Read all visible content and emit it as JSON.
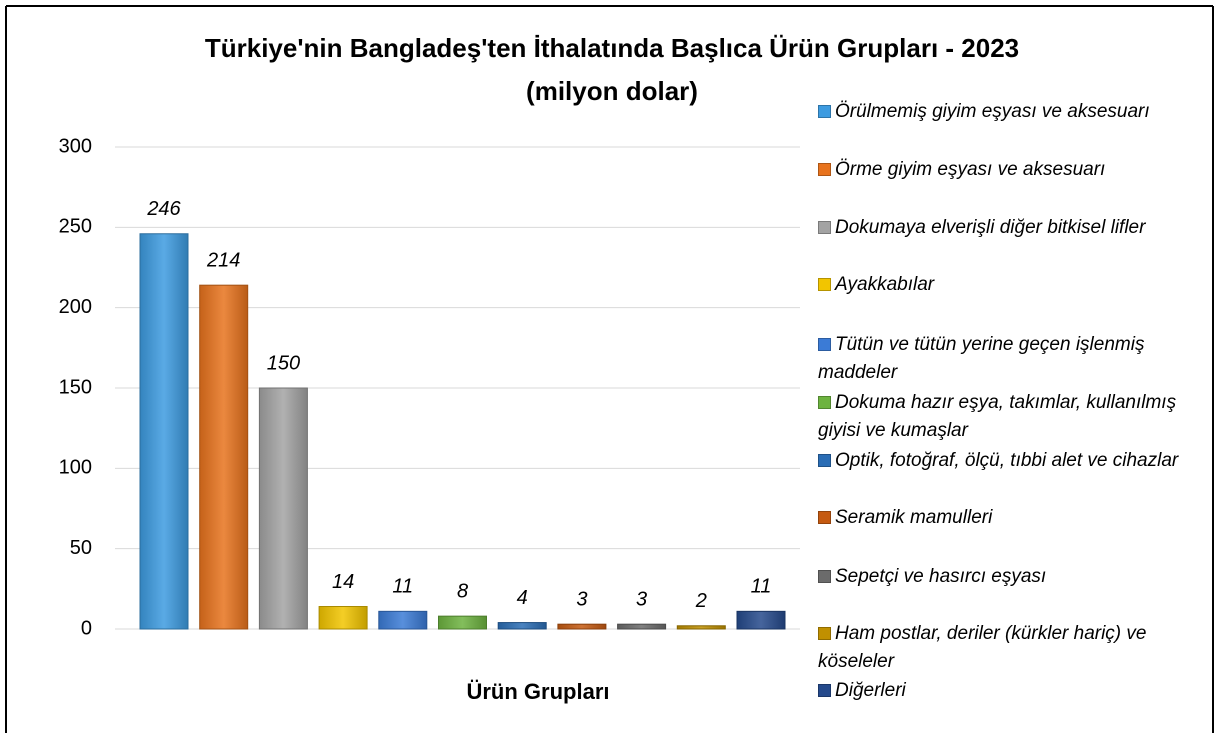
{
  "chart_data": {
    "type": "bar",
    "title": "Türkiye'nin Bangladeş'ten İthalatında Başlıca Ürün Grupları - 2023",
    "subtitle": "(milyon dolar)",
    "x_label": "Ürün Grupları",
    "categories": [
      "Örülmemiş giyim eşyası ve aksesuarı",
      "Örme giyim eşyası ve aksesuarı",
      "Dokumaya elverişli diğer bitkisel lifler",
      "Ayakkabılar",
      "Tütün ve tütün yerine geçen işlenmiş maddeler",
      "Dokuma hazır eşya, takımlar, kullanılmış giyisi ve kumaşlar",
      "Optik, fotoğraf, ölçü, tıbbi alet ve cihazlar",
      "Seramik mamulleri",
      "Sepetçi ve hasırcı eşyası",
      "Ham postlar, deriler (kürkler hariç) ve köseleler",
      "Diğerleri"
    ],
    "values": [
      246,
      214,
      150,
      14,
      11,
      8,
      4,
      3,
      3,
      2,
      11
    ],
    "colors": [
      "#3d9be0",
      "#e8731d",
      "#a3a3a3",
      "#f2c500",
      "#3b7bd6",
      "#6db33f",
      "#2a6db5",
      "#c55a11",
      "#6b6b6b",
      "#c09000",
      "#254a8c"
    ],
    "ylim": [
      0,
      300
    ],
    "yticks": [
      0,
      50,
      100,
      150,
      200,
      250,
      300
    ],
    "grid": true,
    "legend": "right"
  }
}
